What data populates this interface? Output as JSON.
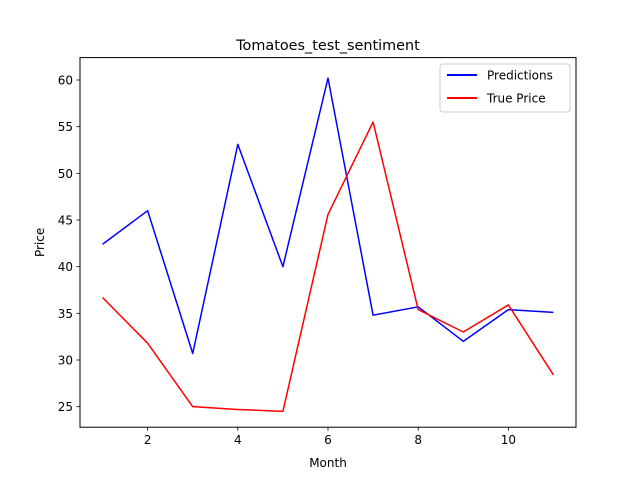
{
  "chart_data": {
    "type": "line",
    "title": "Tomatoes_test_sentiment",
    "xlabel": "Month",
    "ylabel": "Price",
    "x": [
      1,
      2,
      3,
      4,
      5,
      6,
      7,
      8,
      9,
      10,
      11
    ],
    "xlim": [
      0.5,
      11.5
    ],
    "ylim": [
      22.8,
      62.4
    ],
    "xticks": [
      2,
      4,
      6,
      8,
      10
    ],
    "yticks": [
      25,
      30,
      35,
      40,
      45,
      50,
      55,
      60
    ],
    "grid": false,
    "legend_position": "top-right",
    "series": [
      {
        "name": "Predictions",
        "color": "#0000ff",
        "values": [
          42.4,
          46.0,
          30.7,
          53.1,
          40.0,
          60.2,
          34.8,
          35.7,
          32.0,
          35.4,
          35.1
        ]
      },
      {
        "name": "True Price",
        "color": "#ff0000",
        "values": [
          36.7,
          31.8,
          25.0,
          24.7,
          24.5,
          45.6,
          55.5,
          35.4,
          33.0,
          35.9,
          28.4
        ]
      }
    ]
  }
}
